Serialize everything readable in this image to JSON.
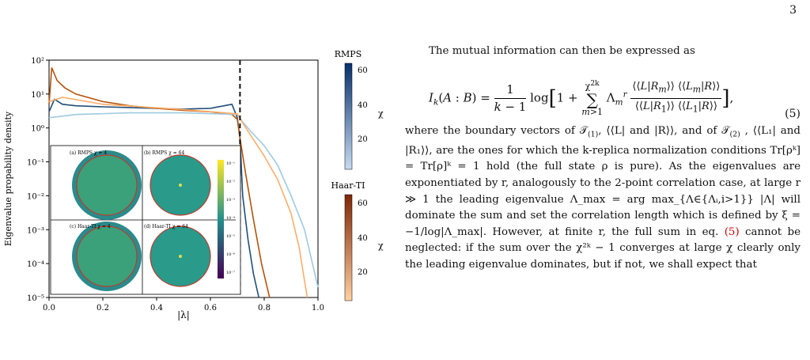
{
  "page_number": "3",
  "figure": {
    "ylabel": "Eigenvalue propability density",
    "xlabel": "|λ|",
    "x_ticks": [
      "0.0",
      "0.2",
      "0.4",
      "0.6",
      "0.8",
      "1.0"
    ],
    "y_ticks": [
      "10⁻⁵",
      "10⁻⁴",
      "10⁻³",
      "10⁻²",
      "10⁻¹",
      "10⁰",
      "10¹",
      "10²"
    ],
    "colorbar_rmps": {
      "title": "RMPS",
      "ticks": [
        "20",
        "40",
        "60"
      ],
      "label": "χ"
    },
    "colorbar_haar": {
      "title": "Haar-TI",
      "ticks": [
        "20",
        "40",
        "60"
      ],
      "label": "χ"
    },
    "inset_labels": [
      "(a) RMPS χ = 4",
      "(b) RMPS χ = 64",
      "(c) Haar-TI χ = 4",
      "(d) Haar-TI χ = 64"
    ],
    "inset_ylabel": "Im(λ)",
    "inset_xlabel": "Re(λ)",
    "inset_cbar_ticks": [
      "10⁻¹",
      "10⁻²",
      "10⁻³",
      "10⁻⁴",
      "10⁻⁵",
      "10⁻⁶",
      "10⁻⁷"
    ],
    "colors": {
      "rmps": "#1f4e79",
      "haar": "#b5520a",
      "dashed": "#111111"
    }
  },
  "chart_data": {
    "type": "line",
    "xlabel": "|λ|",
    "ylabel": "Eigenvalue propability density",
    "xlim": [
      0,
      1
    ],
    "ylim": [
      1e-05,
      100
    ],
    "yscale": "log",
    "vline_x": 0.71,
    "series": [
      {
        "group": "RMPS",
        "chi": 64,
        "x": [
          0.0,
          0.02,
          0.05,
          0.1,
          0.2,
          0.3,
          0.4,
          0.5,
          0.6,
          0.68,
          0.7,
          0.71,
          0.72,
          0.74,
          0.76,
          0.78
        ],
        "y": [
          3,
          7,
          5,
          4.5,
          4.2,
          4,
          3.8,
          3.6,
          3.8,
          5,
          2,
          0.5,
          0.01,
          0.0005,
          5e-05,
          1e-05
        ]
      },
      {
        "group": "Haar-TI",
        "chi": 64,
        "x": [
          0.0,
          0.01,
          0.03,
          0.06,
          0.1,
          0.2,
          0.3,
          0.4,
          0.5,
          0.6,
          0.68,
          0.7,
          0.71,
          0.73,
          0.76,
          0.79,
          0.82
        ],
        "y": [
          5,
          60,
          25,
          15,
          10,
          6,
          4.5,
          3.8,
          3.3,
          3,
          2.5,
          1.8,
          0.5,
          0.05,
          0.002,
          0.0001,
          1e-05
        ]
      },
      {
        "group": "RMPS",
        "chi": 4,
        "x": [
          0.0,
          0.1,
          0.3,
          0.5,
          0.7,
          0.72,
          0.75,
          0.8,
          0.85,
          0.9,
          0.95,
          1.0
        ],
        "y": [
          2,
          2.5,
          2.8,
          2.8,
          2.5,
          1.5,
          0.8,
          0.3,
          0.08,
          0.01,
          0.001,
          2e-05
        ]
      },
      {
        "group": "Haar-TI",
        "chi": 4,
        "x": [
          0.0,
          0.05,
          0.2,
          0.5,
          0.7,
          0.72,
          0.75,
          0.8,
          0.85,
          0.9,
          0.93,
          0.96
        ],
        "y": [
          6,
          8,
          5,
          3.5,
          2.6,
          1.4,
          0.6,
          0.15,
          0.03,
          0.003,
          0.0003,
          1e-05
        ]
      }
    ]
  },
  "text": {
    "para1": "The mutual information can then be expressed as",
    "eq_number": "(5)",
    "para2_a": "where the boundary vectors of 𝒯",
    "para2_sub1": "(1)",
    "para2_b": ", ⟨⟨L| and |R⟩⟩, and of 𝒯",
    "para2_sub2": "(2)",
    "para2_c": " , ⟨⟨L₁| and |R₁⟩⟩, are the ones for which the k-replica normalization conditions Tr[ρᵏ] = Tr[ρ]ᵏ = 1 hold (the full state ρ is pure). As the eigenvalues are exponentiated by r, analogously to the 2-point correlation case, at large r ≫ 1 the leading eigenvalue Λ_max = arg max_{Λ∈{Λᵢ,i>1}} |Λ| will dominate the sum and set the correlation length which is defined by ξ = −1/log|Λ_max|. However, at finite r, the full sum in eq. ",
    "para2_ref": "(5)",
    "para2_d": " cannot be neglected: if the sum over the χ²ᵏ − 1 converges at large χ clearly only the leading eigenvalue dominates, but if not, we shall expect that"
  }
}
